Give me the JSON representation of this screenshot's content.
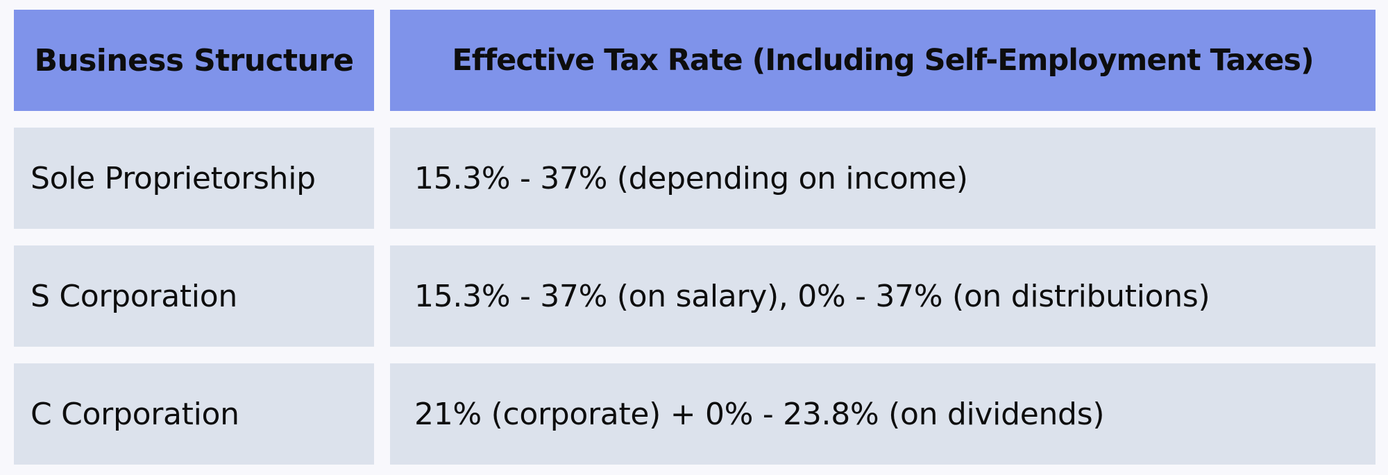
{
  "table": {
    "headers": [
      "Business Structure",
      "Effective Tax Rate (Including Self-Employment Taxes)"
    ],
    "rows": [
      [
        "Sole Proprietorship",
        "15.3% - 37% (depending on income)"
      ],
      [
        "S Corporation",
        "15.3% - 37% (on salary), 0% - 37% (on distributions)"
      ],
      [
        "C Corporation",
        "21% (corporate) + 0% - 23.8% (on dividends)"
      ]
    ]
  },
  "colors": {
    "header_bg": "#7f93ea",
    "row_bg": "#dce2ec",
    "page_bg": "#f8f8fc"
  }
}
